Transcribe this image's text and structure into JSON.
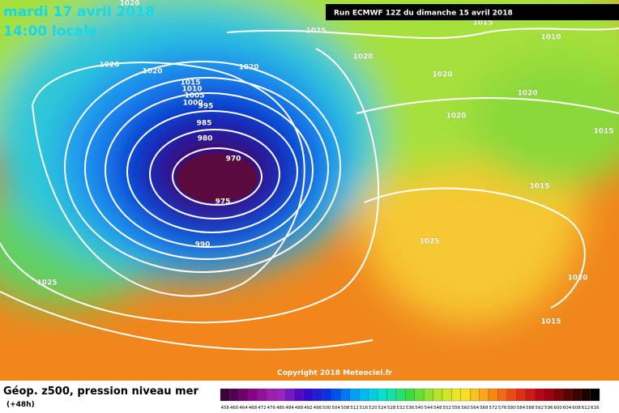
{
  "header": {
    "date": "mardi 17 avril 2018",
    "time": "14:00 locale",
    "run": "Run ECMWF 12Z du dimanche 15 avril 2018"
  },
  "map": {
    "isobar_labels": [
      "1020",
      "1025",
      "1015",
      "1010",
      "1020",
      "1020",
      "1020",
      "1020",
      "1020",
      "1020",
      "1020",
      "1015",
      "1015",
      "1010",
      "1005",
      "1000",
      "995",
      "985",
      "980",
      "970",
      "975",
      "990",
      "1025",
      "1025",
      "1015",
      "1020",
      "1015"
    ],
    "copyright": "Copyright 2018 Meteociel.fr"
  },
  "footer": {
    "title": "Géop. z500, pression niveau mer",
    "lead": "(+48h)"
  },
  "legend": {
    "labels": [
      456,
      460,
      464,
      468,
      472,
      476,
      480,
      484,
      488,
      492,
      496,
      500,
      504,
      508,
      512,
      516,
      520,
      524,
      528,
      532,
      536,
      540,
      544,
      548,
      552,
      556,
      560,
      564,
      568,
      572,
      576,
      580,
      584,
      588,
      592,
      596,
      600,
      604,
      608,
      612,
      616
    ]
  }
}
